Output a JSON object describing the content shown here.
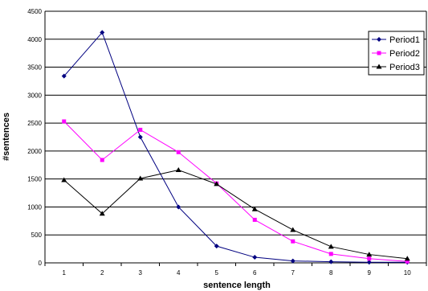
{
  "chart_data": {
    "type": "line",
    "title": "",
    "xlabel": "sentence length",
    "ylabel": "#sentences",
    "x": [
      1,
      2,
      3,
      4,
      5,
      6,
      7,
      8,
      9,
      10
    ],
    "ylim": [
      0,
      4500
    ],
    "yticks": [
      0,
      500,
      1000,
      1500,
      2000,
      2500,
      3000,
      3500,
      4000,
      4500
    ],
    "grid": "horizontal",
    "legend_position": "right",
    "series": [
      {
        "name": "Period1",
        "color": "#000080",
        "marker": "diamond",
        "values": [
          3340,
          4120,
          2250,
          1000,
          300,
          100,
          35,
          20,
          10,
          10
        ]
      },
      {
        "name": "Period2",
        "color": "#ff00ff",
        "marker": "square",
        "values": [
          2530,
          1840,
          2380,
          1980,
          1420,
          770,
          385,
          160,
          75,
          25
        ]
      },
      {
        "name": "Period3",
        "color": "#000000",
        "marker": "triangle",
        "values": [
          1480,
          880,
          1510,
          1660,
          1410,
          960,
          590,
          290,
          150,
          75
        ]
      }
    ]
  }
}
